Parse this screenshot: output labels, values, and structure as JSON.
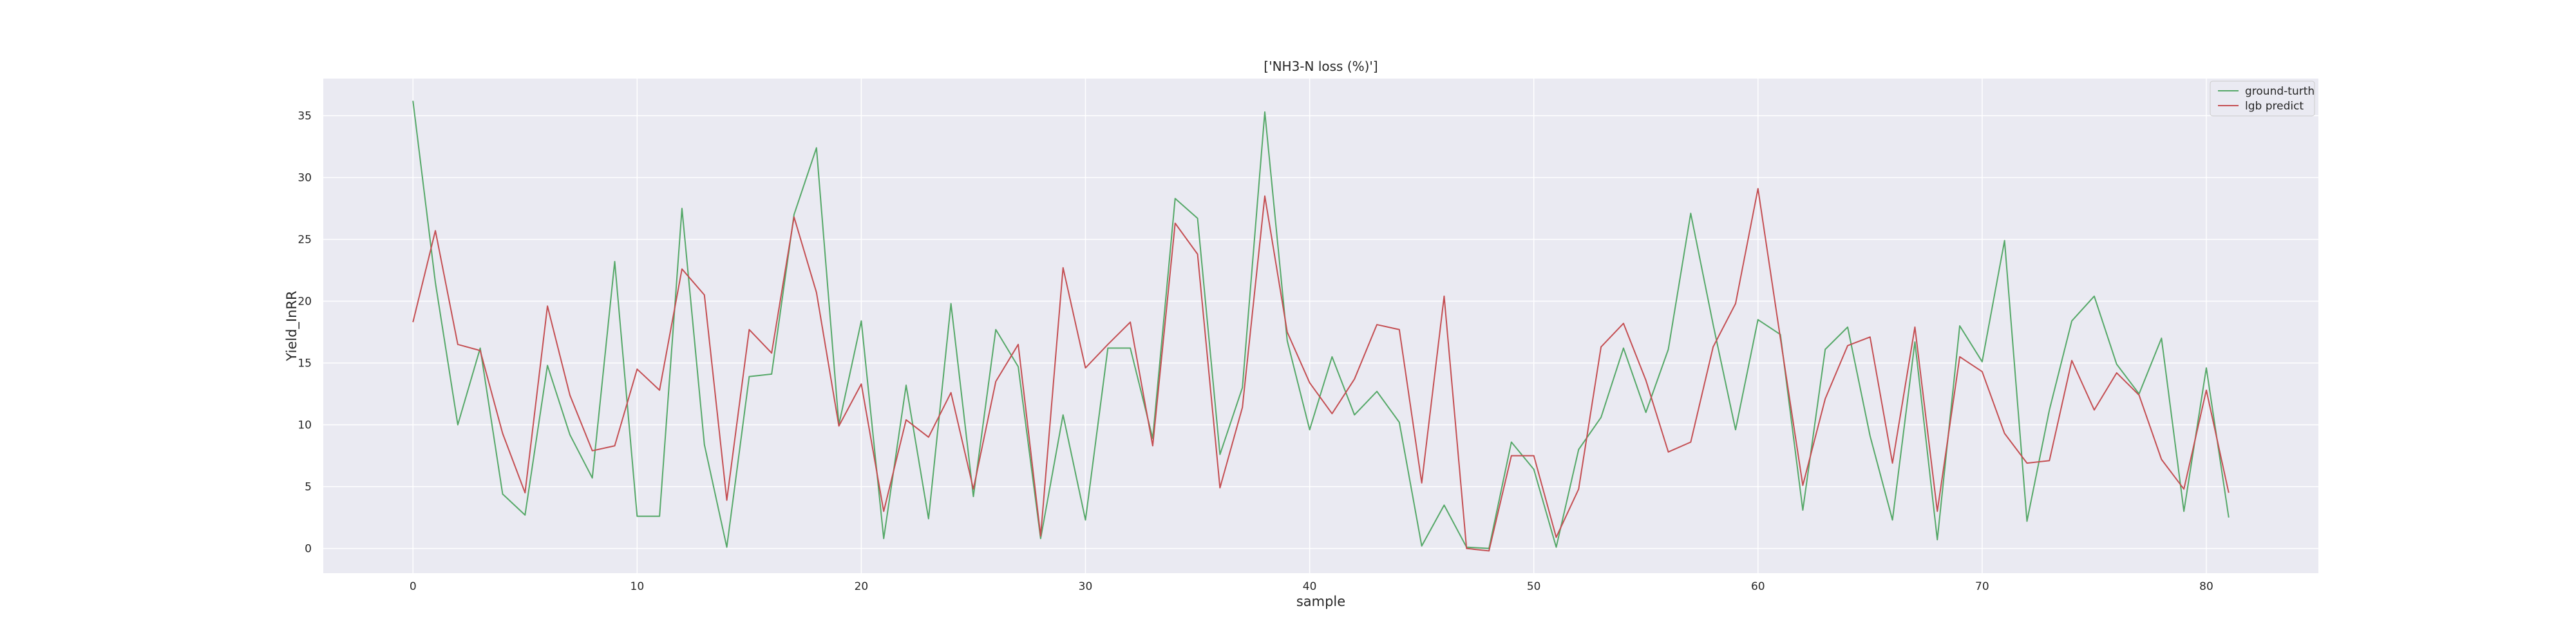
{
  "chart_data": {
    "type": "line",
    "title": "['NH3-N loss (%)']",
    "xlabel": "sample",
    "ylabel": "Yield_InRR",
    "xlim": [
      -4,
      85
    ],
    "ylim": [
      -2,
      38
    ],
    "xticks": [
      0,
      10,
      20,
      30,
      40,
      50,
      60,
      70,
      80
    ],
    "yticks": [
      0,
      5,
      10,
      15,
      20,
      25,
      30,
      35
    ],
    "grid": true,
    "legend_position": "top-right",
    "colors": {
      "plot_background": "#eaeaf2",
      "grid": "#ffffff",
      "ground_truth": "#55a868",
      "prediction": "#c44e52"
    },
    "series": [
      {
        "name": "ground-turth",
        "color": "#55a868",
        "values": [
          36.2,
          21.5,
          10.0,
          16.2,
          4.4,
          2.7,
          14.8,
          9.2,
          5.7,
          23.2,
          2.6,
          2.6,
          27.5,
          8.4,
          0.1,
          13.9,
          14.1,
          27.0,
          32.4,
          10.0,
          18.4,
          0.8,
          13.2,
          2.4,
          19.8,
          4.2,
          17.7,
          14.7,
          0.8,
          10.8,
          2.3,
          16.2,
          16.2,
          8.9,
          28.3,
          26.7,
          7.6,
          13.0,
          35.3,
          16.8,
          9.6,
          15.5,
          10.8,
          12.7,
          10.2,
          0.2,
          3.5,
          0.1,
          0.0,
          8.6,
          6.4,
          0.1,
          8.0,
          10.6,
          16.2,
          11.0,
          16.1,
          27.1,
          18.1,
          9.6,
          18.5,
          17.3,
          3.1,
          16.1,
          17.9,
          9.1,
          2.3,
          16.7,
          0.7,
          18.0,
          15.1,
          24.9,
          2.2,
          11.2,
          18.4,
          20.4,
          14.9,
          12.5,
          17.0,
          3.0,
          14.6,
          2.5
        ]
      },
      {
        "name": "lgb predict",
        "color": "#c44e52",
        "values": [
          18.3,
          25.7,
          16.5,
          16.0,
          9.3,
          4.5,
          19.6,
          12.4,
          7.9,
          8.3,
          14.5,
          12.8,
          22.6,
          20.5,
          3.9,
          17.7,
          15.8,
          26.8,
          20.7,
          9.9,
          13.3,
          3.0,
          10.4,
          9.0,
          12.6,
          4.8,
          13.5,
          16.5,
          1.0,
          22.7,
          14.6,
          16.5,
          18.3,
          8.3,
          26.3,
          23.8,
          4.9,
          11.4,
          28.5,
          17.5,
          13.4,
          10.9,
          13.7,
          18.1,
          17.7,
          5.3,
          20.4,
          0.0,
          -0.2,
          7.5,
          7.5,
          0.9,
          4.8,
          16.3,
          18.2,
          13.6,
          7.8,
          8.6,
          16.3,
          19.8,
          29.1,
          17.0,
          5.1,
          12.1,
          16.4,
          17.1,
          6.9,
          17.9,
          3.0,
          15.5,
          14.3,
          9.3,
          6.9,
          7.1,
          15.2,
          11.2,
          14.2,
          12.4,
          7.2,
          4.8,
          12.8,
          4.5
        ]
      }
    ]
  }
}
